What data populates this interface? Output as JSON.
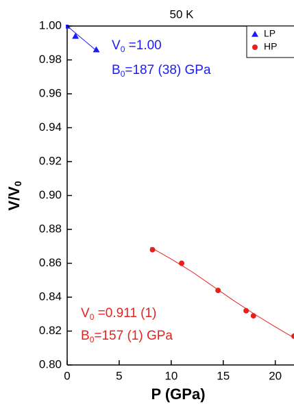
{
  "chart_data": {
    "type": "scatter",
    "title": "50 K",
    "x_label": "P (GPa)",
    "y_label": {
      "parts": [
        "V/V",
        "0"
      ]
    },
    "xlim": [
      0,
      21.8
    ],
    "ylim": [
      0.8,
      1.0
    ],
    "xticks": [
      0,
      5,
      10,
      15,
      20
    ],
    "yticks": [
      {
        "value": 0.8,
        "label": "0.80"
      },
      {
        "value": 0.82,
        "label": "0.82"
      },
      {
        "value": 0.84,
        "label": "0.84"
      },
      {
        "value": 0.86,
        "label": "0.86"
      },
      {
        "value": 0.88,
        "label": "0.88"
      },
      {
        "value": 0.9,
        "label": "0.90"
      },
      {
        "value": 0.92,
        "label": "0.92"
      },
      {
        "value": 0.94,
        "label": "0.94"
      },
      {
        "value": 0.96,
        "label": "0.96"
      },
      {
        "value": 0.98,
        "label": "0.98"
      },
      {
        "value": 1.0,
        "label": "1.00"
      }
    ],
    "series": [
      {
        "name": "LP",
        "color": "#1a1aff",
        "marker": "triangle",
        "x": [
          0,
          0.8,
          2.8
        ],
        "values": [
          1.0,
          0.994,
          0.986
        ]
      },
      {
        "name": "HP",
        "color": "#e8201c",
        "marker": "circle",
        "x": [
          8.2,
          11,
          14.5,
          17.2,
          17.9,
          21.8
        ],
        "values": [
          0.868,
          0.86,
          0.844,
          0.832,
          0.829,
          0.817
        ]
      }
    ],
    "fits": [
      {
        "color": "#1a1aff",
        "x": [
          0,
          3
        ],
        "values": [
          1.0,
          0.9845
        ]
      },
      {
        "color": "#e8201c",
        "x": [
          8,
          10,
          12,
          14,
          16,
          18,
          20,
          21.8
        ],
        "values": [
          0.8695,
          0.8625,
          0.855,
          0.8465,
          0.838,
          0.83,
          0.8225,
          0.816
        ]
      }
    ],
    "annotations": [
      {
        "color": "#1a1aff",
        "parts": [
          "V",
          "0",
          " =1.00"
        ]
      },
      {
        "color": "#1a1aff",
        "parts": [
          "B",
          "0",
          "=187 (38) GPa"
        ]
      },
      {
        "color": "#e8201c",
        "parts": [
          "V",
          "0",
          " =0.911 (1)"
        ]
      },
      {
        "color": "#e8201c",
        "parts": [
          "B",
          "0",
          "=157 (1) GPa"
        ]
      }
    ],
    "legend": "upper right"
  }
}
